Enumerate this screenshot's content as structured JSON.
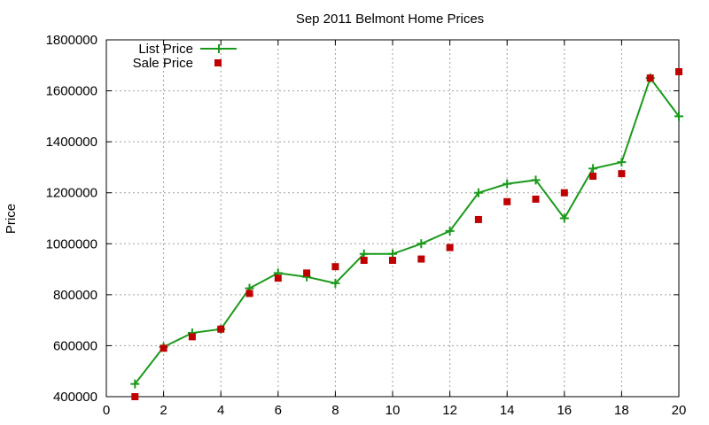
{
  "chart_data": {
    "type": "line",
    "title": "Sep 2011 Belmont Home Prices",
    "xlabel": "",
    "ylabel": "Price",
    "xlim": [
      0,
      20
    ],
    "ylim": [
      400000,
      1800000
    ],
    "xticks": [
      0,
      2,
      4,
      6,
      8,
      10,
      12,
      14,
      16,
      18,
      20
    ],
    "yticks": [
      400000,
      600000,
      800000,
      1000000,
      1200000,
      1400000,
      1600000,
      1800000
    ],
    "xtick_labels": [
      "0",
      "2",
      "4",
      "6",
      "8",
      "10",
      "12",
      "14",
      "16",
      "18",
      "20"
    ],
    "ytick_labels": [
      "400000",
      "600000",
      "800000",
      "1000000",
      "1200000",
      "1400000",
      "1600000",
      "1800000"
    ],
    "grid": true,
    "legend_position": "top-left",
    "series": [
      {
        "name": "List Price",
        "style": "line-plus",
        "color": "#1a9a1a",
        "x": [
          1,
          2,
          3,
          4,
          5,
          6,
          7,
          8,
          9,
          10,
          11,
          12,
          13,
          14,
          15,
          16,
          17,
          18,
          19,
          20
        ],
        "values": [
          450000,
          595000,
          650000,
          665000,
          825000,
          885000,
          870000,
          845000,
          960000,
          960000,
          1000000,
          1050000,
          1200000,
          1235000,
          1250000,
          1100000,
          1295000,
          1320000,
          1650000,
          1500000
        ]
      },
      {
        "name": "Sale Price",
        "style": "square",
        "color": "#c00000",
        "x": [
          1,
          2,
          3,
          4,
          5,
          6,
          7,
          8,
          9,
          10,
          11,
          12,
          13,
          14,
          15,
          16,
          17,
          18,
          19,
          20
        ],
        "values": [
          400000,
          590000,
          635000,
          665000,
          805000,
          865000,
          885000,
          910000,
          935000,
          935000,
          940000,
          985000,
          1095000,
          1165000,
          1175000,
          1200000,
          1265000,
          1275000,
          1650000,
          1675000
        ]
      }
    ]
  }
}
